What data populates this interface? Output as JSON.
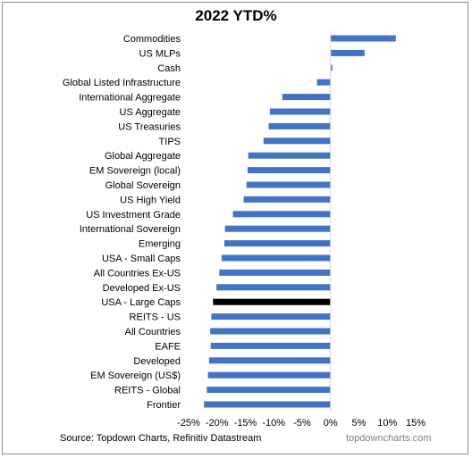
{
  "colors": {
    "bar": "#4472C4",
    "highlight": "#000000",
    "axis": "#d9d9d9"
  },
  "source": "Source: Topdown Charts, Refinitiv Datastream",
  "watermark": "topdowncharts.com",
  "chart_data": {
    "type": "bar",
    "orientation": "horizontal",
    "title": "2022 YTD%",
    "xlabel": "",
    "ylabel": "",
    "xlim": [
      -25,
      15
    ],
    "ticks": [
      -25,
      -20,
      -15,
      -10,
      -5,
      0,
      5,
      10,
      15
    ],
    "tick_labels": [
      "-25%",
      "-20%",
      "-15%",
      "-10%",
      "-5%",
      "0%",
      "5%",
      "10%",
      "15%"
    ],
    "grid": false,
    "highlight": "USA - Large Caps",
    "categories": [
      "Commodities",
      "US MLPs",
      "Cash",
      "Global Listed Infrastructure",
      "International Aggregate",
      "US Aggregate",
      "US Treasuries",
      "TIPS",
      "Global Aggregate",
      "EM Sovereign (local)",
      "Global Sovereign",
      "US High Yield",
      "US Investment Grade",
      "International Sovereign",
      "Emerging",
      "USA - Small Caps",
      "All Countries Ex-US",
      "Developed Ex-US",
      "USA - Large Caps",
      "REITS - US",
      "All Countries",
      "EAFE",
      "Developed",
      "EM Sovereign (US$)",
      "REITS - Global",
      "Frontier"
    ],
    "values": [
      11.5,
      6.0,
      0.3,
      -2.4,
      -8.5,
      -10.7,
      -10.9,
      -11.8,
      -14.5,
      -14.6,
      -14.8,
      -15.3,
      -17.2,
      -18.6,
      -18.7,
      -19.2,
      -19.6,
      -20.1,
      -20.7,
      -21.0,
      -21.2,
      -21.1,
      -21.4,
      -21.6,
      -21.8,
      -22.3
    ]
  }
}
